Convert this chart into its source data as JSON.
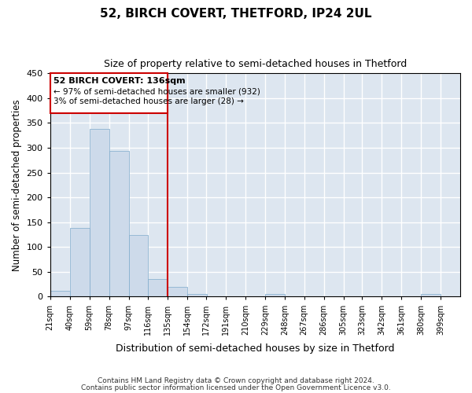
{
  "title": "52, BIRCH COVERT, THETFORD, IP24 2UL",
  "subtitle": "Size of property relative to semi-detached houses in Thetford",
  "xlabel": "Distribution of semi-detached houses by size in Thetford",
  "ylabel": "Number of semi-detached properties",
  "annotation_title": "52 BIRCH COVERT: 136sqm",
  "annotation_line1": "← 97% of semi-detached houses are smaller (932)",
  "annotation_line2": "3% of semi-detached houses are larger (28) →",
  "bar_edges": [
    21,
    40,
    59,
    78,
    97,
    116,
    135,
    154,
    172,
    191,
    210,
    229,
    248,
    267,
    286,
    305,
    323,
    342,
    361,
    380,
    399
  ],
  "bar_heights": [
    12,
    138,
    338,
    293,
    124,
    35,
    20,
    6,
    0,
    0,
    0,
    5,
    0,
    0,
    0,
    0,
    0,
    0,
    0,
    5
  ],
  "bar_color": "#cddaea",
  "bar_edge_color": "#7eaacb",
  "marker_color": "#cc0000",
  "plot_background": "#dde6f0",
  "ylim": [
    0,
    450
  ],
  "yticks": [
    0,
    50,
    100,
    150,
    200,
    250,
    300,
    350,
    400,
    450
  ],
  "footer_line1": "Contains HM Land Registry data © Crown copyright and database right 2024.",
  "footer_line2": "Contains public sector information licensed under the Open Government Licence v3.0."
}
